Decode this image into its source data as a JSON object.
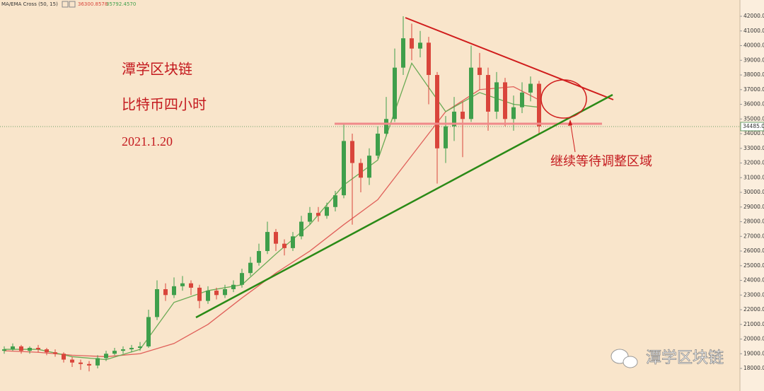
{
  "header": {
    "indicator": "MA/EMA Cross (50, 15)",
    "ma_value": "36300.8578",
    "ema_value": "35792.4570"
  },
  "chart_data": {
    "type": "candlestick",
    "annotations": {
      "title": "潭学区块链",
      "subtitle": "比特币四小时",
      "date": "2021.1.20",
      "note": "继续等待调整区域",
      "watermark": "潭学区块链"
    },
    "up_color": "#3f9f4b",
    "down_color": "#d9453b",
    "ylim": [
      16460,
      43110
    ],
    "yticks": [
      {
        "value": 18000,
        "label": "18000.00"
      },
      {
        "value": 19000,
        "label": "19000.00"
      },
      {
        "value": 20000,
        "label": "20000.00"
      },
      {
        "value": 21000,
        "label": "21000.00"
      },
      {
        "value": 22000,
        "label": "22000.00"
      },
      {
        "value": 23000,
        "label": "23000.00"
      },
      {
        "value": 24000,
        "label": "24000.00"
      },
      {
        "value": 25000,
        "label": "25000.00"
      },
      {
        "value": 26000,
        "label": "26000.00"
      },
      {
        "value": 27000,
        "label": "27000.00"
      },
      {
        "value": 28000,
        "label": "28000.00"
      },
      {
        "value": 29000,
        "label": "29000.00"
      },
      {
        "value": 30000,
        "label": "30000.00"
      },
      {
        "value": 31000,
        "label": "31000.00"
      },
      {
        "value": 32000,
        "label": "32000.00"
      },
      {
        "value": 33000,
        "label": "33000.00"
      },
      {
        "value": 34000,
        "label": "34000.00"
      },
      {
        "value": 35000,
        "label": "35000.00"
      },
      {
        "value": 36000,
        "label": "36000.00"
      },
      {
        "value": 37000,
        "label": "37000.00"
      },
      {
        "value": 38000,
        "label": "38000.00"
      },
      {
        "value": 39000,
        "label": "39000.00"
      },
      {
        "value": 40000,
        "label": "40000.00"
      },
      {
        "value": 41000,
        "label": "41000.00"
      },
      {
        "value": 42000,
        "label": "42000.00"
      }
    ],
    "last_price": {
      "value": 34485,
      "label": "34485.00"
    },
    "candles": [
      {
        "o": 19200,
        "h": 19500,
        "l": 19000,
        "c": 19300
      },
      {
        "o": 19300,
        "h": 19700,
        "l": 19200,
        "c": 19500
      },
      {
        "o": 19500,
        "h": 19600,
        "l": 19000,
        "c": 19200
      },
      {
        "o": 19200,
        "h": 19500,
        "l": 19000,
        "c": 19400
      },
      {
        "o": 19400,
        "h": 19600,
        "l": 19100,
        "c": 19300
      },
      {
        "o": 19300,
        "h": 19400,
        "l": 18900,
        "c": 19100
      },
      {
        "o": 19100,
        "h": 19300,
        "l": 18800,
        "c": 19000
      },
      {
        "o": 19000,
        "h": 19100,
        "l": 18400,
        "c": 18600
      },
      {
        "o": 18600,
        "h": 18800,
        "l": 18100,
        "c": 18400
      },
      {
        "o": 18400,
        "h": 18600,
        "l": 17900,
        "c": 18300
      },
      {
        "o": 18300,
        "h": 18500,
        "l": 17800,
        "c": 18200
      },
      {
        "o": 18200,
        "h": 18900,
        "l": 18000,
        "c": 18700
      },
      {
        "o": 18700,
        "h": 19200,
        "l": 18500,
        "c": 19000
      },
      {
        "o": 19000,
        "h": 19400,
        "l": 18900,
        "c": 19200
      },
      {
        "o": 19200,
        "h": 19500,
        "l": 19000,
        "c": 19300
      },
      {
        "o": 19300,
        "h": 19600,
        "l": 19100,
        "c": 19400
      },
      {
        "o": 19400,
        "h": 19800,
        "l": 19200,
        "c": 19500
      },
      {
        "o": 19500,
        "h": 22000,
        "l": 19400,
        "c": 21500
      },
      {
        "o": 21500,
        "h": 24000,
        "l": 21300,
        "c": 23400
      },
      {
        "o": 23400,
        "h": 23800,
        "l": 22600,
        "c": 23000
      },
      {
        "o": 23000,
        "h": 24200,
        "l": 22800,
        "c": 23600
      },
      {
        "o": 23600,
        "h": 24300,
        "l": 23300,
        "c": 23800
      },
      {
        "o": 23800,
        "h": 24000,
        "l": 23000,
        "c": 23500
      },
      {
        "o": 23500,
        "h": 23700,
        "l": 22100,
        "c": 22600
      },
      {
        "o": 22600,
        "h": 23600,
        "l": 22400,
        "c": 23300
      },
      {
        "o": 23300,
        "h": 23500,
        "l": 22700,
        "c": 23000
      },
      {
        "o": 23000,
        "h": 23700,
        "l": 22800,
        "c": 23400
      },
      {
        "o": 23400,
        "h": 24000,
        "l": 23200,
        "c": 23700
      },
      {
        "o": 23700,
        "h": 24800,
        "l": 23500,
        "c": 24500
      },
      {
        "o": 24500,
        "h": 25600,
        "l": 24300,
        "c": 25200
      },
      {
        "o": 25200,
        "h": 26500,
        "l": 25000,
        "c": 26000
      },
      {
        "o": 26000,
        "h": 28000,
        "l": 25800,
        "c": 27300
      },
      {
        "o": 27300,
        "h": 27500,
        "l": 26000,
        "c": 26500
      },
      {
        "o": 26500,
        "h": 26800,
        "l": 25700,
        "c": 26200
      },
      {
        "o": 26200,
        "h": 27300,
        "l": 26000,
        "c": 27000
      },
      {
        "o": 27000,
        "h": 28400,
        "l": 26800,
        "c": 28000
      },
      {
        "o": 28000,
        "h": 29000,
        "l": 27800,
        "c": 28600
      },
      {
        "o": 28600,
        "h": 29000,
        "l": 28000,
        "c": 28400
      },
      {
        "o": 28400,
        "h": 29300,
        "l": 28200,
        "c": 29000
      },
      {
        "o": 29000,
        "h": 30100,
        "l": 28700,
        "c": 29800
      },
      {
        "o": 29800,
        "h": 34700,
        "l": 29600,
        "c": 33500
      },
      {
        "o": 33500,
        "h": 34000,
        "l": 27800,
        "c": 32000
      },
      {
        "o": 32000,
        "h": 32300,
        "l": 30000,
        "c": 31000
      },
      {
        "o": 31000,
        "h": 33000,
        "l": 30500,
        "c": 32500
      },
      {
        "o": 32500,
        "h": 34500,
        "l": 32300,
        "c": 34000
      },
      {
        "o": 34000,
        "h": 36500,
        "l": 33800,
        "c": 35000
      },
      {
        "o": 35000,
        "h": 39800,
        "l": 34800,
        "c": 38500
      },
      {
        "o": 38500,
        "h": 42000,
        "l": 38000,
        "c": 40500
      },
      {
        "o": 40500,
        "h": 41500,
        "l": 39000,
        "c": 39800
      },
      {
        "o": 39800,
        "h": 41000,
        "l": 39200,
        "c": 40200
      },
      {
        "o": 40200,
        "h": 40600,
        "l": 36000,
        "c": 38000
      },
      {
        "o": 38000,
        "h": 38200,
        "l": 30600,
        "c": 33000
      },
      {
        "o": 33000,
        "h": 35200,
        "l": 32000,
        "c": 34500
      },
      {
        "o": 34500,
        "h": 36500,
        "l": 33500,
        "c": 35500
      },
      {
        "o": 35500,
        "h": 36200,
        "l": 32400,
        "c": 35000
      },
      {
        "o": 35000,
        "h": 40000,
        "l": 34800,
        "c": 38500
      },
      {
        "o": 38500,
        "h": 39500,
        "l": 37000,
        "c": 38000
      },
      {
        "o": 38000,
        "h": 38500,
        "l": 34200,
        "c": 35500
      },
      {
        "o": 35500,
        "h": 38200,
        "l": 35000,
        "c": 37500
      },
      {
        "o": 37500,
        "h": 37800,
        "l": 34500,
        "c": 35000
      },
      {
        "o": 35000,
        "h": 36600,
        "l": 34200,
        "c": 35800
      },
      {
        "o": 35800,
        "h": 37500,
        "l": 35400,
        "c": 36800
      },
      {
        "o": 36800,
        "h": 37900,
        "l": 36200,
        "c": 37400
      },
      {
        "o": 37400,
        "h": 37600,
        "l": 34000,
        "c": 34500
      }
    ],
    "lines": [
      {
        "color": "#e0605a",
        "x": [
          0,
          4,
          8,
          12,
          16,
          20,
          24,
          28,
          32,
          36,
          40,
          44,
          48,
          52,
          56,
          60,
          63
        ],
        "values": [
          19200,
          19100,
          18900,
          18800,
          19000,
          19700,
          21000,
          22800,
          24500,
          26000,
          27800,
          29500,
          32500,
          35500,
          37000,
          37200,
          36300
        ]
      },
      {
        "color": "#6aaa55",
        "x": [
          0,
          4,
          8,
          12,
          16,
          20,
          24,
          28,
          32,
          36,
          40,
          44,
          48,
          52,
          56,
          60,
          63
        ],
        "values": [
          19300,
          19300,
          18800,
          18600,
          19300,
          22500,
          23300,
          23700,
          25800,
          27800,
          30500,
          32200,
          38800,
          35500,
          36800,
          36000,
          35800
        ]
      }
    ]
  }
}
